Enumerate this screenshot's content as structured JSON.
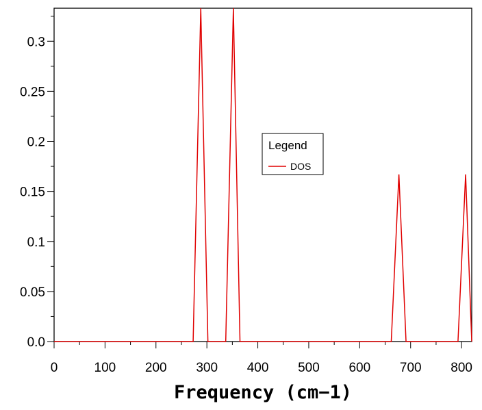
{
  "chart_data": {
    "type": "line",
    "title": "",
    "xlabel": "Frequency (cm−1)",
    "ylabel": "",
    "xlim": [
      0,
      820
    ],
    "ylim": [
      0,
      0.333
    ],
    "x_ticks": [
      0,
      100,
      200,
      300,
      400,
      500,
      600,
      700,
      800
    ],
    "y_ticks": [
      0.0,
      0.05,
      0.1,
      0.15,
      0.2,
      0.25,
      0.3
    ],
    "y_tick_labels": [
      "0.0",
      "0.05",
      "0.1",
      "0.15",
      "0.2",
      "0.25",
      "0.3"
    ],
    "grid": false,
    "legend": {
      "title": "Legend",
      "placement": "center-right",
      "entries": [
        "DOS"
      ]
    },
    "series": [
      {
        "name": "DOS",
        "color": "#e00000",
        "x": [
          0,
          273,
          288,
          302,
          337,
          352,
          365,
          662,
          677,
          691,
          793,
          808,
          822
        ],
        "y": [
          0,
          0,
          0.333,
          0,
          0,
          0.333,
          0,
          0,
          0.167,
          0,
          0,
          0.167,
          0
        ]
      }
    ]
  }
}
